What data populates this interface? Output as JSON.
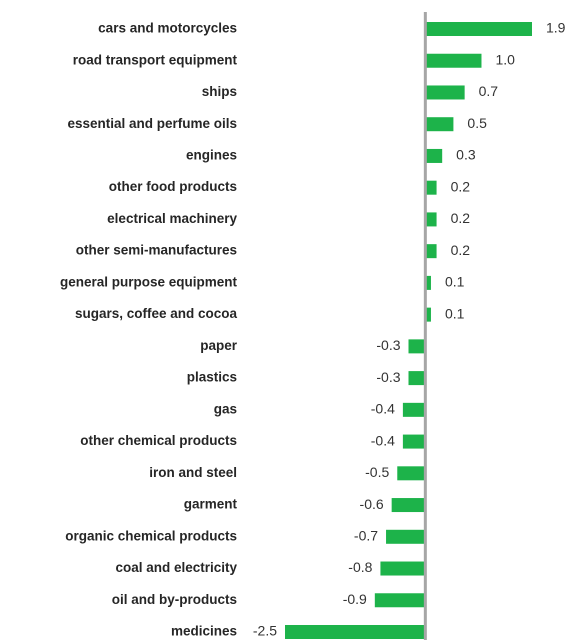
{
  "chart_data": {
    "type": "bar",
    "orientation": "horizontal",
    "color": "#1db34a",
    "categories": [
      "cars and motorcycles",
      "road transport equipment",
      "ships",
      "essential and perfume oils",
      "engines",
      "other food products",
      "electrical machinery",
      "other semi-manufactures",
      "general purpose equipment",
      "sugars, coffee and cocoa",
      "paper",
      "plastics",
      "gas",
      "other chemical products",
      "iron and steel",
      "garment",
      "organic chemical products",
      "coal and electricity",
      "oil and by-products",
      "medicines"
    ],
    "values": [
      1.9,
      1.0,
      0.7,
      0.5,
      0.3,
      0.2,
      0.2,
      0.2,
      0.1,
      0.1,
      -0.3,
      -0.3,
      -0.4,
      -0.4,
      -0.5,
      -0.6,
      -0.7,
      -0.8,
      -0.9,
      -2.5
    ],
    "value_labels": [
      "1.9",
      "1.0",
      "0.7",
      "0.5",
      "0.3",
      "0.2",
      "0.2",
      "0.2",
      "0.1",
      "0.1",
      "-0.3",
      "-0.3",
      "-0.4",
      "-0.4",
      "-0.5",
      "-0.6",
      "-0.7",
      "-0.8",
      "-0.9",
      "-2.5"
    ]
  }
}
